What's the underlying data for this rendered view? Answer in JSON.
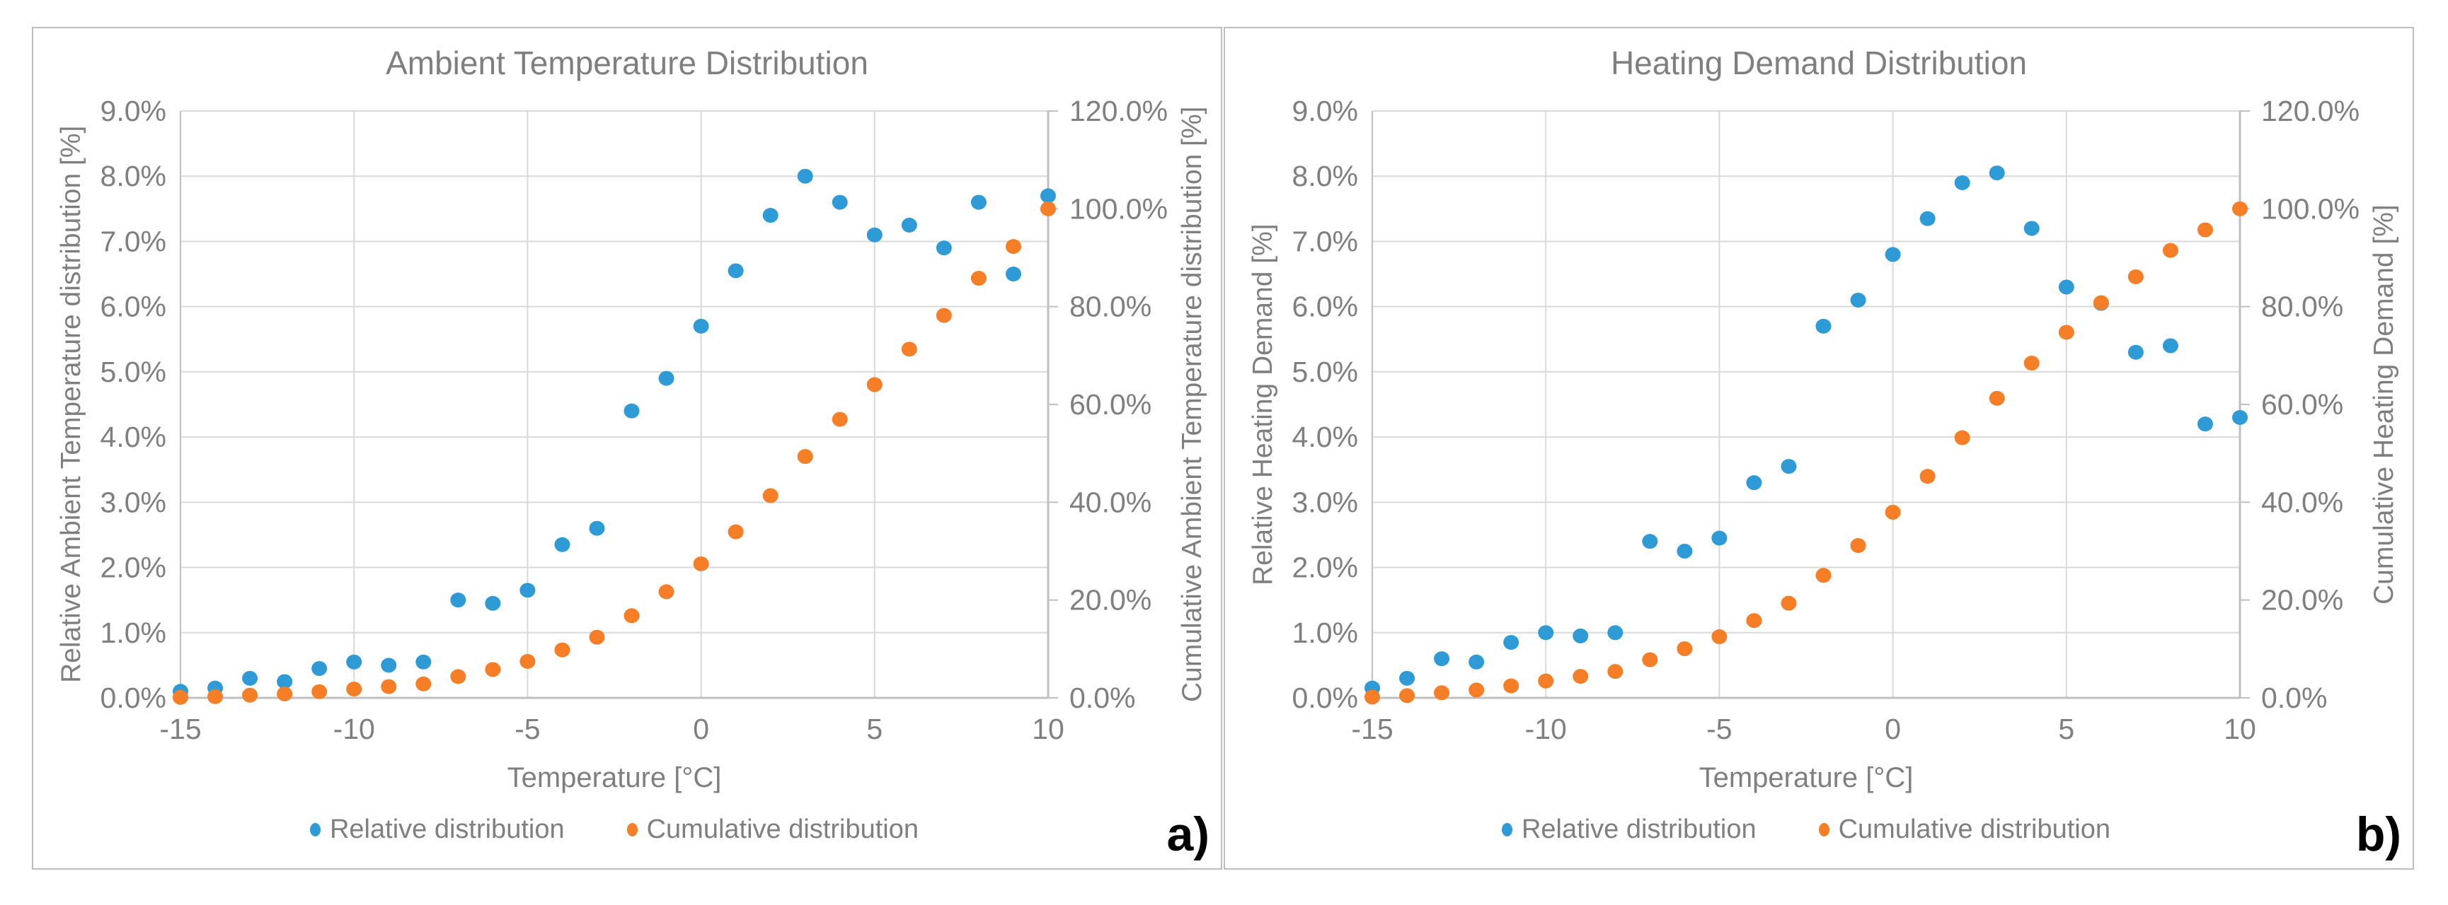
{
  "page": {
    "background": "#FFFFFF"
  },
  "colors": {
    "relative_series": "#2E9AD6",
    "cumulative_series": "#F57E27",
    "gridline": "#D9D9D9",
    "axis_line": "#BFBFBF",
    "text": "#7F7F7F",
    "panel_border": "#BDBDBD",
    "panel_label_color": "#000000"
  },
  "legend": {
    "relative_label": "Relative distribution",
    "cumulative_label": "Cumulative distribution"
  },
  "chart_data": [
    {
      "type": "scatter",
      "panel_label": "a)",
      "title": "Ambient Temperature Distribution",
      "xlabel": "Temperature [°C]",
      "ylabel_left": "Relative Ambient Temperature distribution [%]",
      "ylabel_right": "Cumulative Ambient Temperature distribution [%]",
      "grid": true,
      "legend_position": "bottom",
      "axes": {
        "x": {
          "min": -15,
          "max": 10,
          "step": 5
        },
        "y_left": {
          "min": 0,
          "max": 9,
          "step": 1
        },
        "y_right": {
          "min": 0,
          "max": 120,
          "step": 20
        }
      },
      "x_ticks": [
        "-15",
        "-10",
        "-5",
        "0",
        "5",
        "10"
      ],
      "y_left_ticks": [
        "0.0%",
        "1.0%",
        "2.0%",
        "3.0%",
        "4.0%",
        "5.0%",
        "6.0%",
        "7.0%",
        "8.0%",
        "9.0%"
      ],
      "y_right_ticks": [
        "0.0%",
        "20.0%",
        "40.0%",
        "60.0%",
        "80.0%",
        "100.0%",
        "120.0%"
      ],
      "x": [
        -15,
        -14,
        -13,
        -12,
        -11,
        -10,
        -9,
        -8,
        -7,
        -6,
        -5,
        -4,
        -3,
        -2,
        -1,
        0,
        1,
        2,
        3,
        4,
        5,
        6,
        7,
        8,
        9,
        10
      ],
      "series": [
        {
          "name": "Relative distribution",
          "axis": "left",
          "color": "#2E9AD6",
          "values": [
            0.1,
            0.15,
            0.3,
            0.25,
            0.45,
            0.55,
            0.5,
            0.55,
            1.5,
            1.45,
            1.65,
            2.35,
            2.6,
            4.4,
            4.9,
            5.7,
            6.55,
            7.4,
            8.0,
            7.6,
            7.1,
            7.25,
            6.9,
            7.6,
            6.5,
            7.7
          ]
        },
        {
          "name": "Cumulative distribution",
          "axis": "right",
          "color": "#F57E27",
          "values": [
            0.1,
            0.25,
            0.55,
            0.8,
            1.25,
            1.8,
            2.3,
            2.85,
            4.35,
            5.8,
            7.45,
            9.8,
            12.4,
            16.8,
            21.7,
            27.4,
            33.95,
            41.35,
            49.35,
            56.95,
            64.05,
            71.3,
            78.2,
            85.8,
            92.3,
            100.0
          ]
        }
      ]
    },
    {
      "type": "scatter",
      "panel_label": "b)",
      "title": "Heating Demand Distribution",
      "xlabel": "Temperature [°C]",
      "ylabel_left": "Relative Heating Demand [%]",
      "ylabel_right": "Cumulative Heating Demand [%]",
      "grid": true,
      "legend_position": "bottom",
      "axes": {
        "x": {
          "min": -15,
          "max": 10,
          "step": 5
        },
        "y_left": {
          "min": 0,
          "max": 9,
          "step": 1
        },
        "y_right": {
          "min": 0,
          "max": 120,
          "step": 20
        }
      },
      "x_ticks": [
        "-15",
        "-10",
        "-5",
        "0",
        "5",
        "10"
      ],
      "y_left_ticks": [
        "0.0%",
        "1.0%",
        "2.0%",
        "3.0%",
        "4.0%",
        "5.0%",
        "6.0%",
        "7.0%",
        "8.0%",
        "9.0%"
      ],
      "y_right_ticks": [
        "0.0%",
        "20.0%",
        "40.0%",
        "60.0%",
        "80.0%",
        "100.0%",
        "120.0%"
      ],
      "x": [
        -15,
        -14,
        -13,
        -12,
        -11,
        -10,
        -9,
        -8,
        -7,
        -6,
        -5,
        -4,
        -3,
        -2,
        -1,
        0,
        1,
        2,
        3,
        4,
        5,
        6,
        7,
        8,
        9,
        10
      ],
      "series": [
        {
          "name": "Relative distribution",
          "axis": "left",
          "color": "#2E9AD6",
          "values": [
            0.15,
            0.3,
            0.6,
            0.55,
            0.85,
            1.0,
            0.95,
            1.0,
            2.4,
            2.25,
            2.45,
            3.3,
            3.55,
            5.7,
            6.1,
            6.8,
            7.35,
            7.9,
            8.05,
            7.2,
            6.3,
            6.05,
            5.3,
            5.4,
            4.2,
            4.3
          ]
        },
        {
          "name": "Cumulative distribution",
          "axis": "right",
          "color": "#F57E27",
          "values": [
            0.15,
            0.45,
            1.05,
            1.6,
            2.45,
            3.45,
            4.4,
            5.4,
            7.8,
            10.05,
            12.5,
            15.8,
            19.35,
            25.05,
            31.15,
            37.95,
            45.3,
            53.2,
            61.25,
            68.45,
            74.75,
            80.8,
            86.1,
            91.5,
            95.7,
            100.0
          ]
        }
      ]
    }
  ]
}
